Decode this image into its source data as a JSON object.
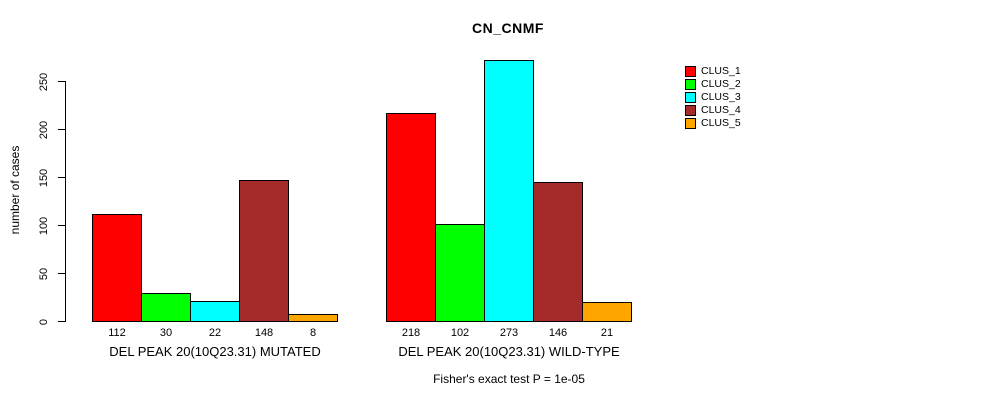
{
  "chart_data": {
    "type": "bar",
    "title": "CN_CNMF",
    "xlabel": "",
    "ylabel": "number of cases",
    "ylim": [
      0,
      280
    ],
    "yticks": [
      0,
      50,
      100,
      150,
      200,
      250
    ],
    "grid": false,
    "legend_position": "right-margin",
    "categories": [
      "DEL PEAK 20(10Q23.31) MUTATED",
      "DEL PEAK 20(10Q23.31) WILD-TYPE"
    ],
    "series": [
      {
        "name": "CLUS_1",
        "color": "#FF0000",
        "values": [
          112,
          218
        ]
      },
      {
        "name": "CLUS_2",
        "color": "#00FF00",
        "values": [
          30,
          102
        ]
      },
      {
        "name": "CLUS_3",
        "color": "#00FFFF",
        "values": [
          22,
          273
        ]
      },
      {
        "name": "CLUS_4",
        "color": "#A52A2A",
        "values": [
          148,
          146
        ]
      },
      {
        "name": "CLUS_5",
        "color": "#FFA500",
        "values": [
          8,
          21
        ]
      }
    ],
    "bar_value_labels": [
      [
        112,
        30,
        22,
        148,
        8
      ],
      [
        218,
        102,
        273,
        146,
        21
      ]
    ],
    "annotation": "Fisher's exact test P = 1e-05"
  }
}
